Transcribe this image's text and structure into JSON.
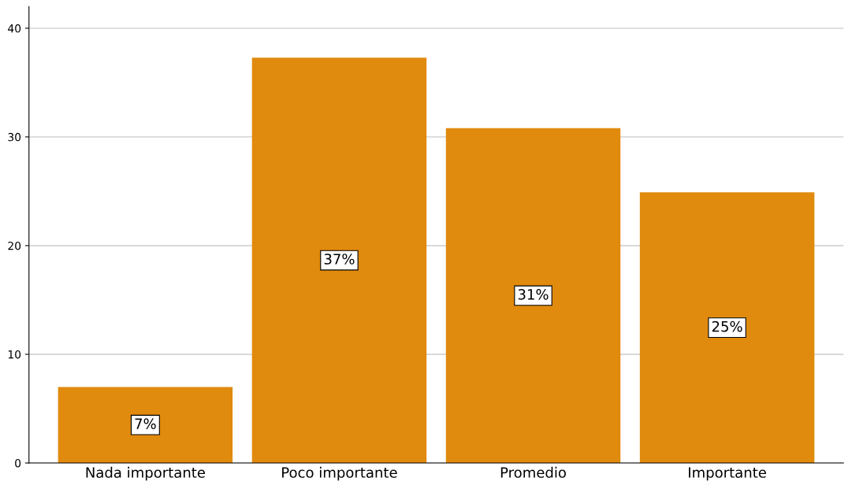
{
  "chart_data": {
    "type": "bar",
    "categories": [
      "Nada importante",
      "Poco importante",
      "Promedio",
      "Importante"
    ],
    "values": [
      7.0,
      37.3,
      30.8,
      24.9
    ],
    "value_labels": [
      "7%",
      "37%",
      "31%",
      "25%"
    ],
    "color": "#e08a0e",
    "ylim": [
      0,
      42
    ],
    "yticks": [
      0,
      10,
      20,
      30,
      40
    ],
    "grid": "y"
  }
}
